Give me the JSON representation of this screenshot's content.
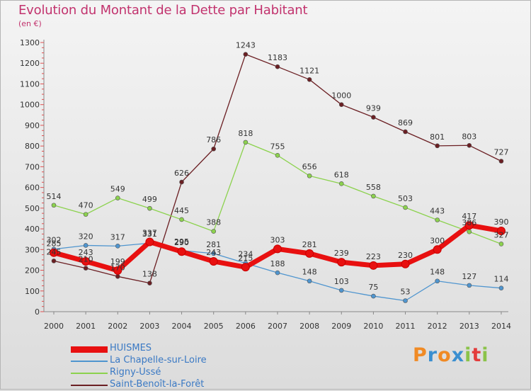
{
  "header": {
    "title": "Evolution du Montant de la Dette par Habitant",
    "subtitle": "(en €)"
  },
  "logo": {
    "text": "Proxiti",
    "colors": [
      "#f08a24",
      "#3a8fd0",
      "#f08a24",
      "#3a8fd0",
      "#8bc34a",
      "#e33c3c",
      "#8bc34a"
    ]
  },
  "chart_data": {
    "type": "line",
    "x": [
      "2000",
      "2001",
      "2002",
      "2003",
      "2004",
      "2005",
      "2006",
      "2007",
      "2008",
      "2009",
      "2010",
      "2011",
      "2012",
      "2013",
      "2014"
    ],
    "ylim": [
      0,
      1300
    ],
    "yticks": [
      0,
      100,
      200,
      300,
      400,
      500,
      600,
      700,
      800,
      900,
      1000,
      1100,
      1200,
      1300
    ],
    "grid": false,
    "legend_position": "bottom-left",
    "series": [
      {
        "name": "HUISMES",
        "color": "#e81010",
        "width": 7,
        "radius": 5.5,
        "values": [
          285,
          243,
          199,
          337,
          290,
          243,
          215,
          303,
          281,
          239,
          223,
          230,
          300,
          417,
          390
        ],
        "labels": [
          "285",
          "243",
          "199",
          "337",
          "290",
          "243",
          "215",
          "303",
          "281",
          "239",
          "223",
          "230",
          "300",
          "417",
          "390"
        ]
      },
      {
        "name": "La Chapelle-sur-Loire",
        "color": "#4f95cf",
        "width": 1.3,
        "radius": 3,
        "values": [
          302,
          320,
          317,
          331,
          295,
          281,
          234,
          188,
          148,
          103,
          75,
          53,
          148,
          127,
          114
        ],
        "labels": [
          "302",
          "320",
          "317",
          "331",
          "295",
          "281",
          "234",
          "188",
          "148",
          "103",
          "75",
          "53",
          "148",
          "127",
          "114"
        ]
      },
      {
        "name": "Rigny-Ussé",
        "color": "#8cd24e",
        "width": 1.3,
        "radius": 3,
        "values": [
          514,
          470,
          549,
          499,
          445,
          388,
          818,
          755,
          656,
          618,
          558,
          503,
          443,
          386,
          327
        ],
        "labels": [
          "514",
          "470",
          "549",
          "499",
          "445",
          "388",
          "818",
          "755",
          "656",
          "618",
          "558",
          "503",
          "443",
          "386",
          "327"
        ]
      },
      {
        "name": "Saint-Benoît-la-Forêt",
        "color": "#6b1f23",
        "width": 1.3,
        "radius": 3,
        "values": [
          245,
          210,
          170,
          138,
          626,
          786,
          1243,
          1183,
          1121,
          1000,
          939,
          869,
          801,
          803,
          727
        ],
        "labels": [
          "245",
          "210",
          "170",
          "138",
          "626",
          "786",
          "1243",
          "1183",
          "1121",
          "1000",
          "939",
          "869",
          "801",
          "803",
          "727"
        ]
      }
    ]
  }
}
